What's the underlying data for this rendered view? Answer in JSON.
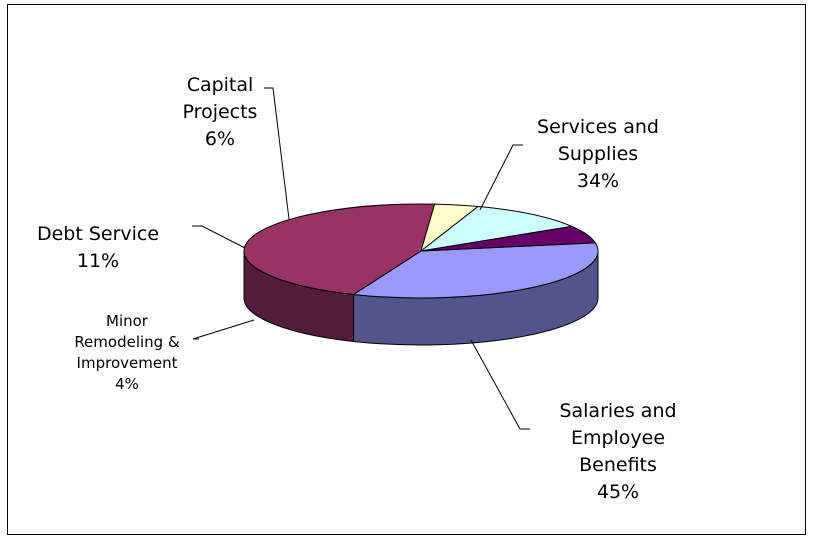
{
  "chart_data": {
    "type": "pie",
    "style": "3d",
    "legend": "none",
    "slices": [
      {
        "label_lines": [
          "Services and",
          "Supplies"
        ],
        "value_label": "34%",
        "value": 34,
        "color": "#9999FF"
      },
      {
        "label_lines": [
          "Salaries and",
          "Employee",
          "Benefits"
        ],
        "value_label": "45%",
        "value": 45,
        "color": "#993366"
      },
      {
        "label_lines": [
          "Minor",
          "Remodeling &",
          "Improvement"
        ],
        "value_label": "4%",
        "value": 4,
        "color": "#FFFFCC"
      },
      {
        "label_lines": [
          "Debt Service"
        ],
        "value_label": "11%",
        "value": 11,
        "color": "#CCFFFF"
      },
      {
        "label_lines": [
          "Capital",
          "Projects"
        ],
        "value_label": "6%",
        "value": 6,
        "color": "#660066"
      }
    ]
  }
}
